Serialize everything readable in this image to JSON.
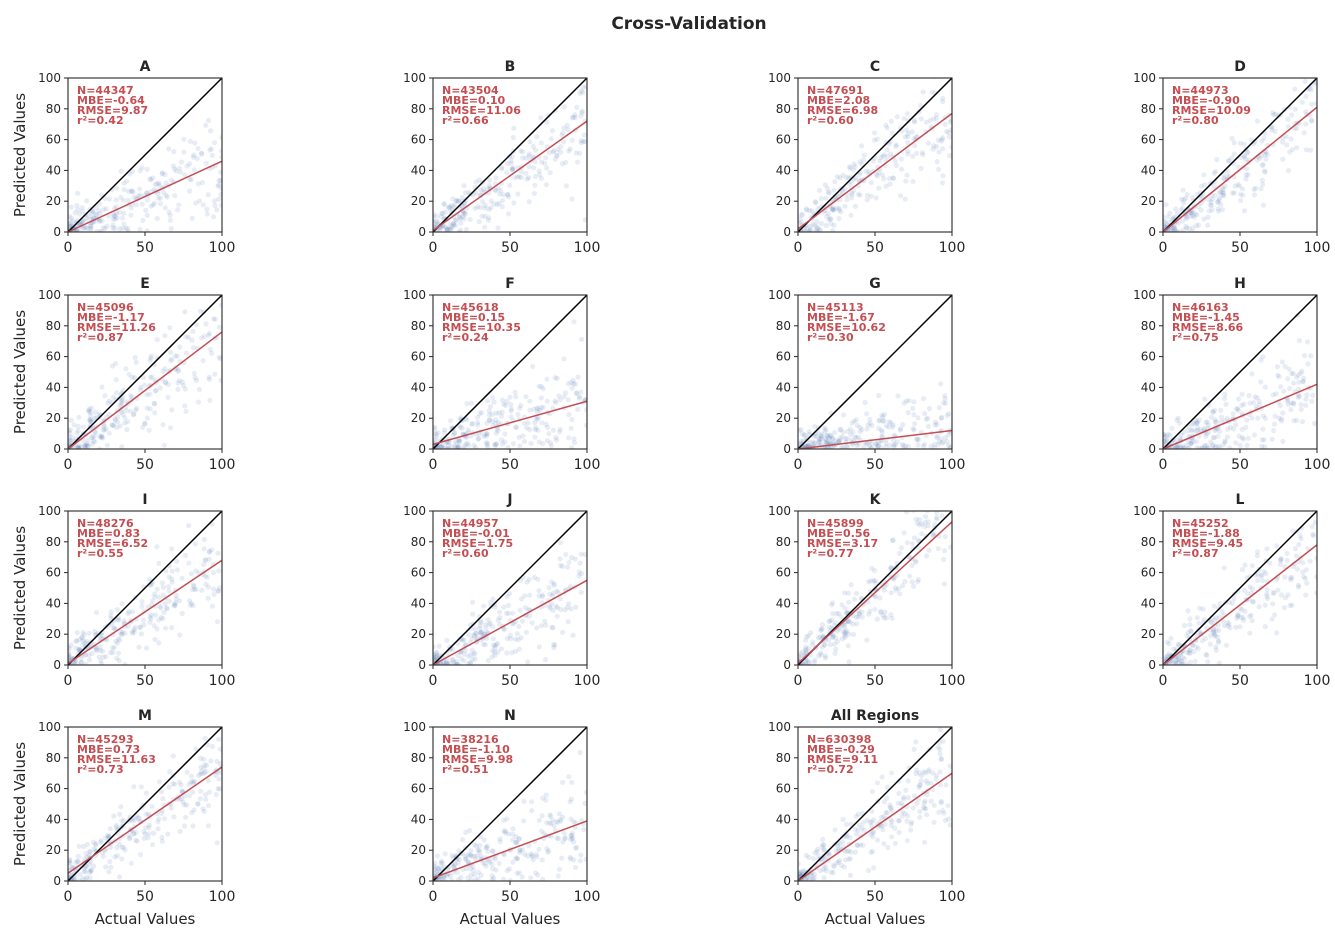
{
  "chart_data": {
    "type": "scatter",
    "title": "Cross-Validation",
    "xlabel": "Actual Values",
    "ylabel": "Predicted Values",
    "xlim": [
      0,
      100
    ],
    "ylim": [
      0,
      100
    ],
    "x_ticks": [
      "0",
      "50",
      "100"
    ],
    "y_ticks": [
      "0",
      "20",
      "40",
      "60",
      "80",
      "100"
    ],
    "grid": false,
    "colors": {
      "points": "#4c72b0",
      "fit_line": "#c44e52",
      "identity_line": "#000000",
      "stats_text": "#c44e52"
    },
    "panels": [
      {
        "title": "A",
        "stats": [
          "N=44347",
          "MBE=-0.64",
          "RMSE=9.87",
          "r²=0.42"
        ],
        "fit_line": {
          "x": [
            0,
            100
          ],
          "y": [
            0,
            46
          ]
        }
      },
      {
        "title": "B",
        "stats": [
          "N=43504",
          "MBE=0.10",
          "RMSE=11.06",
          "r²=0.66"
        ],
        "fit_line": {
          "x": [
            0,
            100
          ],
          "y": [
            1,
            72
          ]
        }
      },
      {
        "title": "C",
        "stats": [
          "N=47691",
          "MBE=2.08",
          "RMSE=6.98",
          "r²=0.60"
        ],
        "fit_line": {
          "x": [
            0,
            100
          ],
          "y": [
            2,
            77
          ]
        }
      },
      {
        "title": "D",
        "stats": [
          "N=44973",
          "MBE=-0.90",
          "RMSE=10.09",
          "r²=0.80"
        ],
        "fit_line": {
          "x": [
            0,
            100
          ],
          "y": [
            0,
            81
          ]
        }
      },
      {
        "title": "E",
        "stats": [
          "N=45096",
          "MBE=-1.17",
          "RMSE=11.26",
          "r²=0.87"
        ],
        "fit_line": {
          "x": [
            0,
            100
          ],
          "y": [
            0,
            76
          ]
        }
      },
      {
        "title": "F",
        "stats": [
          "N=45618",
          "MBE=0.15",
          "RMSE=10.35",
          "r²=0.24"
        ],
        "fit_line": {
          "x": [
            0,
            100
          ],
          "y": [
            3,
            31
          ]
        }
      },
      {
        "title": "G",
        "stats": [
          "N=45113",
          "MBE=-1.67",
          "RMSE=10.62",
          "r²=0.30"
        ],
        "fit_line": {
          "x": [
            0,
            100
          ],
          "y": [
            0,
            12
          ]
        }
      },
      {
        "title": "H",
        "stats": [
          "N=46163",
          "MBE=-1.45",
          "RMSE=8.66",
          "r²=0.75"
        ],
        "fit_line": {
          "x": [
            0,
            100
          ],
          "y": [
            0,
            42
          ]
        }
      },
      {
        "title": "I",
        "stats": [
          "N=48276",
          "MBE=0.83",
          "RMSE=6.52",
          "r²=0.55"
        ],
        "fit_line": {
          "x": [
            0,
            100
          ],
          "y": [
            1,
            68
          ]
        }
      },
      {
        "title": "J",
        "stats": [
          "N=44957",
          "MBE=-0.01",
          "RMSE=1.75",
          "r²=0.60"
        ],
        "fit_line": {
          "x": [
            0,
            100
          ],
          "y": [
            0,
            55
          ]
        }
      },
      {
        "title": "K",
        "stats": [
          "N=45899",
          "MBE=0.56",
          "RMSE=3.17",
          "r²=0.77"
        ],
        "fit_line": {
          "x": [
            0,
            100
          ],
          "y": [
            1,
            93
          ]
        }
      },
      {
        "title": "L",
        "stats": [
          "N=45252",
          "MBE=-1.88",
          "RMSE=9.45",
          "r²=0.87"
        ],
        "fit_line": {
          "x": [
            0,
            100
          ],
          "y": [
            0,
            78
          ]
        }
      },
      {
        "title": "M",
        "stats": [
          "N=45293",
          "MBE=0.73",
          "RMSE=11.63",
          "r²=0.73"
        ],
        "fit_line": {
          "x": [
            0,
            100
          ],
          "y": [
            5,
            74
          ]
        }
      },
      {
        "title": "N",
        "stats": [
          "N=38216",
          "MBE=-1.10",
          "RMSE=9.98",
          "r²=0.51"
        ],
        "fit_line": {
          "x": [
            0,
            100
          ],
          "y": [
            2,
            39
          ]
        }
      },
      {
        "title": "All Regions",
        "stats": [
          "N=630398",
          "MBE=-0.29",
          "RMSE=9.11",
          "r²=0.72"
        ],
        "fit_line": {
          "x": [
            0,
            100
          ],
          "y": [
            0,
            70
          ]
        }
      }
    ]
  }
}
